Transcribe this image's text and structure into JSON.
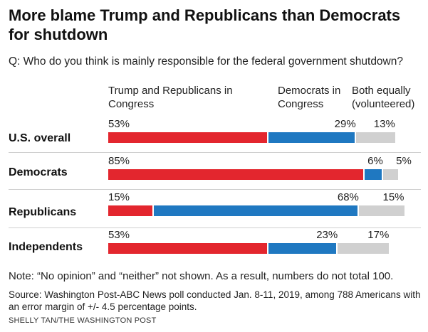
{
  "title": "More blame Trump and Republicans than Democrats for shutdown",
  "question": "Q: Who do you think is mainly responsible for the federal government shutdown?",
  "note": "Note: “No opinion” and “neither” not shown. As a result, numbers do not total 100.",
  "source": "Source: Washington Post-ABC News poll conducted Jan. 8-11, 2019, among 788 Americans with an error margin of +/- 4.5 percentage points.",
  "credit": "SHELLY TAN/THE WASHINGTON POST",
  "chart_data": {
    "type": "bar",
    "stacked": true,
    "orientation": "horizontal",
    "categories": [
      "U.S. overall",
      "Democrats",
      "Republicans",
      "Independents"
    ],
    "series": [
      {
        "name": "Trump and Republicans in Congress",
        "values": [
          53,
          85,
          15,
          53
        ],
        "color": "#e3262e",
        "value_labels": [
          "53%",
          "85%",
          "15%",
          "53%"
        ]
      },
      {
        "name": "Democrats in Congress",
        "values": [
          29,
          6,
          68,
          23
        ],
        "color": "#1f78c1",
        "value_labels": [
          "29%",
          "6%",
          "68%",
          "23%"
        ]
      },
      {
        "name": "Both equally (volunteered)",
        "values": [
          13,
          5,
          15,
          17
        ],
        "color": "#d0d0d0",
        "value_labels": [
          "13%",
          "5%",
          "15%",
          "17%"
        ]
      }
    ],
    "xlim": [
      0,
      100
    ],
    "grid": false,
    "legend": "top column headers"
  }
}
